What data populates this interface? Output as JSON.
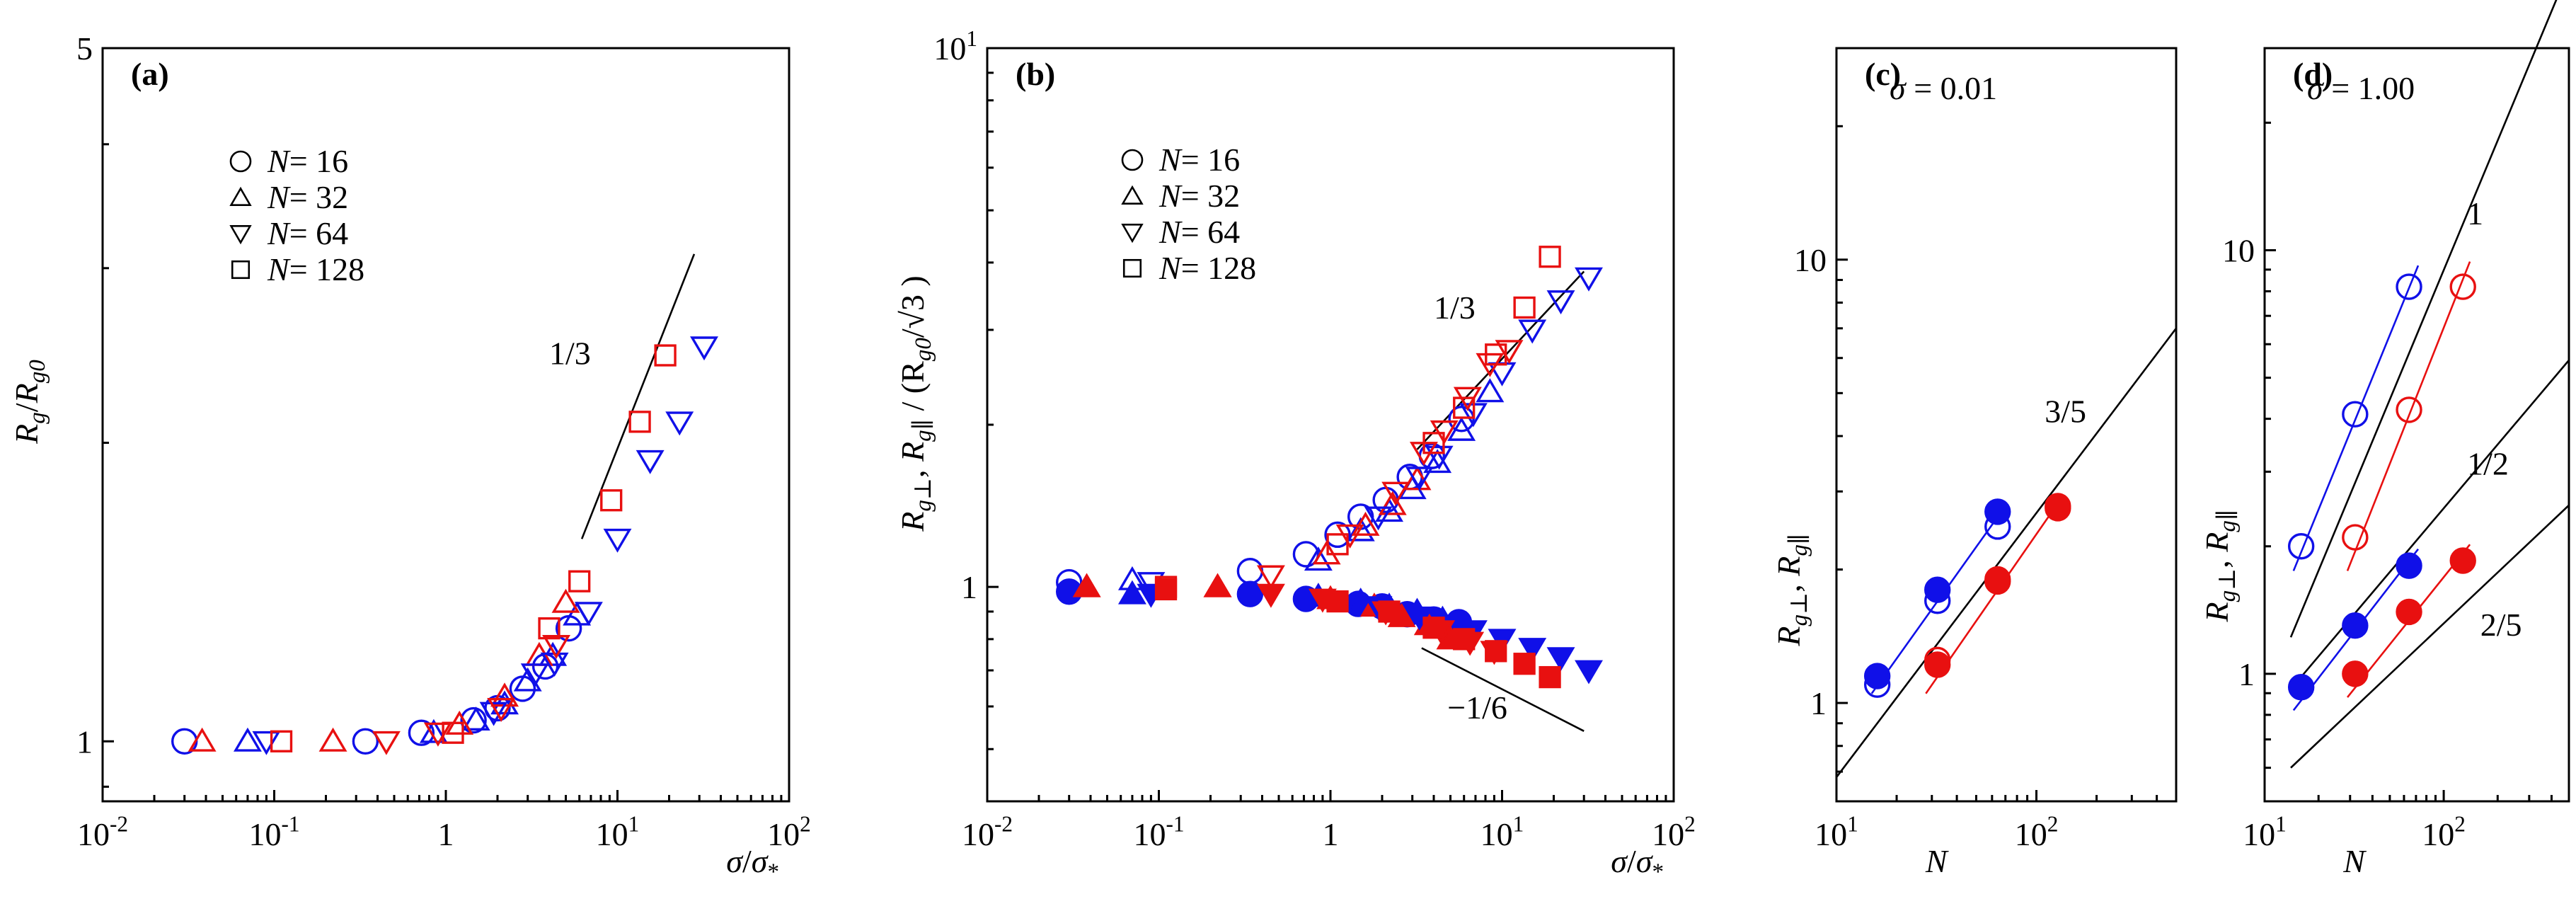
{
  "colors": {
    "blue": "#1010e8",
    "red": "#e81010",
    "black": "#000000"
  },
  "legend": {
    "symbols": [
      "circle",
      "triangle-up",
      "triangle-down",
      "square"
    ],
    "var": "N",
    "entries": [
      "= 16",
      "= 32",
      "= 64",
      "= 128"
    ]
  },
  "chart_data": [
    {
      "id": "a",
      "panel_label": "(a)",
      "type": "scatter",
      "xscale": "log",
      "yscale": "log",
      "xlim": [
        0.01,
        100
      ],
      "ylim": [
        0.87,
        5
      ],
      "xticks": [
        {
          "v": 0.01,
          "b": "10",
          "e": "-2"
        },
        {
          "v": 0.1,
          "b": "10",
          "e": "-1"
        },
        {
          "v": 1,
          "b": "1",
          "e": ""
        },
        {
          "v": 10,
          "b": "10",
          "e": "1"
        },
        {
          "v": 100,
          "b": "10",
          "e": "2"
        }
      ],
      "yticks": [
        {
          "v": 1,
          "label": "1"
        },
        {
          "v": 5,
          "label": "5"
        }
      ],
      "xlabel": {
        "num": "σ",
        "slash": "/",
        "den": "σ",
        "sub": "*"
      },
      "ylabel": {
        "main": "R",
        "sub1": "g",
        "slash": "/",
        "main2": "R",
        "sub2": "g0"
      },
      "legend": true,
      "series": [
        {
          "name": "N = 16, Rg",
          "marker": "circle",
          "color": "blue",
          "filled": false,
          "x": [
            0.03,
            0.34,
            0.72,
            1.45,
            2.0,
            2.8,
            3.8,
            5.2
          ],
          "y": [
            1.0,
            1.0,
            1.02,
            1.05,
            1.08,
            1.13,
            1.19,
            1.3
          ]
        },
        {
          "name": "N = 32, Rg",
          "marker": "triangle-up",
          "color": "blue",
          "filled": false,
          "x": [
            0.07,
            0.85,
            1.5,
            2.2,
            3.0,
            4.2,
            5.8
          ],
          "y": [
            1.0,
            1.02,
            1.05,
            1.09,
            1.15,
            1.22,
            1.34
          ]
        },
        {
          "name": "N = 32, Rg",
          "marker": "triangle-up",
          "color": "red",
          "filled": false,
          "x": [
            0.038,
            0.22,
            1.2,
            2.2,
            3.5,
            5.0
          ],
          "y": [
            1.0,
            1.0,
            1.04,
            1.11,
            1.22,
            1.38
          ]
        },
        {
          "name": "N = 64, Rg",
          "marker": "triangle-down",
          "color": "blue",
          "filled": false,
          "x": [
            0.09,
            1.9,
            3.3,
            4.3,
            6.8,
            10.0,
            15.5,
            23.0,
            32.0
          ],
          "y": [
            1.0,
            1.07,
            1.17,
            1.2,
            1.35,
            1.6,
            1.92,
            2.1,
            2.5
          ]
        },
        {
          "name": "N = 64, Rg",
          "marker": "triangle-down",
          "color": "red",
          "filled": false,
          "x": [
            0.45,
            0.9,
            2.1,
            4.4
          ],
          "y": [
            1.0,
            1.02,
            1.08,
            1.25
          ]
        },
        {
          "name": "N = 128, Rg",
          "marker": "square",
          "color": "red",
          "filled": false,
          "x": [
            0.11,
            1.1,
            4.0,
            6.0,
            9.2,
            13.5,
            19.0
          ],
          "y": [
            1.0,
            1.02,
            1.3,
            1.45,
            1.75,
            2.1,
            2.45
          ]
        }
      ],
      "guides": [
        {
          "label": "1/3",
          "x": [
            6.2,
            28
          ],
          "y": [
            1.6,
            3.1
          ],
          "label_at": [
            4.0,
            2.4
          ]
        }
      ]
    },
    {
      "id": "b",
      "panel_label": "(b)",
      "type": "scatter",
      "xscale": "log",
      "yscale": "log",
      "xlim": [
        0.01,
        100
      ],
      "ylim": [
        0.4,
        10
      ],
      "xticks": [
        {
          "v": 0.01,
          "b": "10",
          "e": "-2"
        },
        {
          "v": 0.1,
          "b": "10",
          "e": "-1"
        },
        {
          "v": 1,
          "b": "1",
          "e": ""
        },
        {
          "v": 10,
          "b": "10",
          "e": "1"
        },
        {
          "v": 100,
          "b": "10",
          "e": "2"
        }
      ],
      "yticks": [
        {
          "v": 1,
          "b": "1",
          "e": ""
        },
        {
          "v": 10,
          "b": "10",
          "e": "1"
        }
      ],
      "xlabel": {
        "num": "σ",
        "slash": "/",
        "den": "σ",
        "sub": "*"
      },
      "ylabel": {
        "main": "R",
        "sub1": "g⊥",
        "sep": ", ",
        "main2": "R",
        "sub2": "g∥",
        "tail": " / (R",
        "sub3": "g0",
        "tail2": "/√3 )"
      },
      "legend": true,
      "series": [
        {
          "name": "N = 16, Rg⊥",
          "marker": "circle",
          "color": "blue",
          "filled": false,
          "x": [
            0.03,
            0.34,
            0.72,
            1.1,
            1.5,
            2.1,
            2.9,
            3.9,
            5.8
          ],
          "y": [
            1.02,
            1.07,
            1.15,
            1.25,
            1.35,
            1.45,
            1.6,
            1.75,
            2.05
          ]
        },
        {
          "name": "N = 32, Rg⊥",
          "marker": "triangle-up",
          "color": "blue",
          "filled": false,
          "x": [
            0.07,
            0.85,
            1.5,
            2.2,
            3.0,
            4.2,
            5.8,
            8.5
          ],
          "y": [
            1.03,
            1.12,
            1.27,
            1.38,
            1.52,
            1.7,
            1.95,
            2.3
          ]
        },
        {
          "name": "N = 32, Rg⊥",
          "marker": "triangle-up",
          "color": "red",
          "filled": false,
          "x": [
            0.038,
            0.22,
            0.95,
            1.6,
            2.3,
            3.2
          ],
          "y": [
            1.0,
            1.0,
            1.15,
            1.3,
            1.42,
            1.58
          ]
        },
        {
          "name": "N = 64, Rg⊥",
          "marker": "triangle-down",
          "color": "blue",
          "filled": false,
          "x": [
            0.09,
            1.9,
            3.3,
            4.3,
            6.8,
            10.0,
            15.0,
            22.0,
            32.0
          ],
          "y": [
            1.02,
            1.35,
            1.6,
            1.75,
            2.1,
            2.5,
            3.0,
            3.4,
            3.75
          ]
        },
        {
          "name": "N = 64, Rg⊥",
          "marker": "triangle-down",
          "color": "red",
          "filled": false,
          "x": [
            0.45,
            1.3,
            2.4,
            3.5,
            4.6,
            6.3,
            8.5,
            11.0
          ],
          "y": [
            1.05,
            1.25,
            1.5,
            1.78,
            1.95,
            2.25,
            2.6,
            2.75
          ]
        },
        {
          "name": "N = 128, Rg⊥",
          "marker": "square",
          "color": "red",
          "filled": false,
          "x": [
            0.11,
            1.1,
            4.0,
            6.0,
            9.2,
            13.5,
            19.0
          ],
          "y": [
            1.0,
            1.2,
            1.85,
            2.15,
            2.7,
            3.3,
            4.1
          ]
        },
        {
          "name": "N = 16, Rg∥",
          "marker": "circle",
          "color": "blue",
          "filled": true,
          "x": [
            0.03,
            0.34,
            0.72,
            1.45,
            2.0,
            2.8,
            4.0,
            5.6
          ],
          "y": [
            0.98,
            0.97,
            0.95,
            0.93,
            0.92,
            0.89,
            0.87,
            0.86
          ]
        },
        {
          "name": "N = 32, Rg∥",
          "marker": "triangle-up",
          "color": "blue",
          "filled": true,
          "x": [
            0.07,
            0.85,
            1.5,
            2.2,
            3.2,
            4.5
          ],
          "y": [
            0.97,
            0.96,
            0.94,
            0.92,
            0.9,
            0.87
          ]
        },
        {
          "name": "N = 32, Rg∥",
          "marker": "triangle-up",
          "color": "red",
          "filled": true,
          "x": [
            0.038,
            0.22,
            1.0,
            1.8,
            2.6,
            3.7,
            5.0
          ],
          "y": [
            1.0,
            1.0,
            0.95,
            0.92,
            0.88,
            0.85,
            0.8
          ]
        },
        {
          "name": "N = 64, Rg∥",
          "marker": "triangle-down",
          "color": "blue",
          "filled": true,
          "x": [
            0.09,
            1.9,
            3.3,
            6.8,
            10.0,
            15.0,
            22.0,
            32.0
          ],
          "y": [
            0.97,
            0.92,
            0.88,
            0.83,
            0.8,
            0.77,
            0.74,
            0.7
          ]
        },
        {
          "name": "N = 64, Rg∥",
          "marker": "triangle-down",
          "color": "red",
          "filled": true,
          "x": [
            0.45,
            0.9,
            2.1,
            4.4,
            6.5,
            9.0
          ],
          "y": [
            0.97,
            0.95,
            0.9,
            0.83,
            0.79,
            0.76
          ]
        },
        {
          "name": "N = 128, Rg∥",
          "marker": "square",
          "color": "red",
          "filled": true,
          "x": [
            0.11,
            1.1,
            2.2,
            4.0,
            6.0,
            9.2,
            13.5,
            19.0
          ],
          "y": [
            0.99,
            0.94,
            0.9,
            0.84,
            0.8,
            0.76,
            0.72,
            0.68
          ]
        }
      ],
      "guides": [
        {
          "label": "1/3",
          "x": [
            3.2,
            30
          ],
          "y": [
            1.8,
            3.85
          ],
          "label_at": [
            4.0,
            3.15
          ]
        },
        {
          "label": "−1/6",
          "x": [
            3.4,
            30
          ],
          "y": [
            0.77,
            0.54
          ],
          "label_at": [
            4.8,
            0.57
          ]
        }
      ]
    },
    {
      "id": "c",
      "panel_label": "(c)",
      "type": "scatter",
      "annotation": {
        "sym": "σ",
        "text": " = 0.01"
      },
      "xscale": "log",
      "yscale": "log",
      "xlim": [
        10,
        500
      ],
      "ylim": [
        0.6,
        30
      ],
      "xticks": [
        {
          "v": 10,
          "b": "10",
          "e": "1"
        },
        {
          "v": 100,
          "b": "10",
          "e": "2"
        }
      ],
      "yticks": [
        {
          "v": 1,
          "b": "1",
          "e": ""
        },
        {
          "v": 10,
          "b": "10",
          "e": ""
        }
      ],
      "xlabel": {
        "num": "N"
      },
      "ylabel": {
        "main": "R",
        "sub1": "g⊥",
        "sep": ", ",
        "main2": "R",
        "sub2": "g∥"
      },
      "legend": false,
      "series": [
        {
          "name": "Rg⊥",
          "marker": "circle",
          "color": "blue",
          "filled": false,
          "x": [
            16,
            32,
            64
          ],
          "y": [
            1.1,
            1.7,
            2.5
          ]
        },
        {
          "name": "Rg∥",
          "marker": "circle",
          "color": "blue",
          "filled": true,
          "x": [
            16,
            32,
            64
          ],
          "y": [
            1.15,
            1.8,
            2.7
          ]
        },
        {
          "name": "Rg⊥",
          "marker": "circle",
          "color": "red",
          "filled": false,
          "x": [
            32,
            64,
            128
          ],
          "y": [
            1.25,
            1.9,
            2.75
          ]
        },
        {
          "name": "Rg∥",
          "marker": "circle",
          "color": "red",
          "filled": true,
          "x": [
            32,
            64,
            128
          ],
          "y": [
            1.22,
            1.88,
            2.78
          ]
        }
      ],
      "fits": [
        {
          "color": "blue",
          "x": [
            15,
            66
          ],
          "y": [
            1.05,
            2.68
          ]
        },
        {
          "color": "red",
          "x": [
            28,
            130
          ],
          "y": [
            1.05,
            2.85
          ]
        }
      ],
      "guides": [
        {
          "label": "3/5",
          "x": [
            10,
            500
          ],
          "y": [
            0.68,
            7.0
          ],
          "label_at": [
            110,
            4.3
          ]
        }
      ]
    },
    {
      "id": "d",
      "panel_label": "(d)",
      "type": "scatter",
      "annotation": {
        "sym": "σ",
        "text": " = 1.00"
      },
      "xscale": "log",
      "yscale": "log",
      "xlim": [
        10,
        500
      ],
      "ylim": [
        0.5,
        30
      ],
      "xticks": [
        {
          "v": 10,
          "b": "10",
          "e": "1"
        },
        {
          "v": 100,
          "b": "10",
          "e": "2"
        }
      ],
      "yticks": [
        {
          "v": 1,
          "b": "1",
          "e": ""
        },
        {
          "v": 10,
          "b": "10",
          "e": ""
        }
      ],
      "xlabel": {
        "num": "N"
      },
      "ylabel": {
        "main": "R",
        "sub1": "g⊥",
        "sep": ", ",
        "main2": "R",
        "sub2": "g∥"
      },
      "legend": false,
      "series": [
        {
          "name": "Rg⊥",
          "marker": "circle",
          "color": "blue",
          "filled": false,
          "x": [
            16,
            32,
            64
          ],
          "y": [
            2.0,
            4.1,
            8.2
          ]
        },
        {
          "name": "Rg∥",
          "marker": "circle",
          "color": "blue",
          "filled": true,
          "x": [
            16,
            32,
            64
          ],
          "y": [
            0.93,
            1.3,
            1.8
          ]
        },
        {
          "name": "Rg⊥",
          "marker": "circle",
          "color": "red",
          "filled": false,
          "x": [
            32,
            64,
            128
          ],
          "y": [
            2.1,
            4.2,
            8.2
          ]
        },
        {
          "name": "Rg∥",
          "marker": "circle",
          "color": "red",
          "filled": true,
          "x": [
            32,
            64,
            128
          ],
          "y": [
            1.0,
            1.4,
            1.85
          ]
        }
      ],
      "fits": [
        {
          "color": "blue",
          "x": [
            14.5,
            72
          ],
          "y": [
            1.75,
            9.2
          ]
        },
        {
          "color": "red",
          "x": [
            29,
            140
          ],
          "y": [
            1.75,
            9.4
          ]
        },
        {
          "color": "blue",
          "x": [
            14.5,
            72
          ],
          "y": [
            0.82,
            1.97
          ]
        },
        {
          "color": "red",
          "x": [
            29,
            140
          ],
          "y": [
            0.88,
            2.02
          ]
        }
      ],
      "guides": [
        {
          "label": "1",
          "x": [
            14,
            500
          ],
          "y": [
            1.22,
            46
          ]
        },
        {
          "label": "1/2",
          "x": [
            14,
            500
          ],
          "y": [
            0.92,
            5.5
          ]
        },
        {
          "label": "2/5",
          "x": [
            14,
            500
          ],
          "y": [
            0.6,
            2.5
          ]
        }
      ],
      "guide_labels": [
        {
          "label": "1",
          "at": [
            135,
            11.5
          ]
        },
        {
          "label": "1/2",
          "at": [
            135,
            2.95
          ]
        },
        {
          "label": "2/5",
          "at": [
            160,
            1.23
          ]
        }
      ]
    }
  ]
}
